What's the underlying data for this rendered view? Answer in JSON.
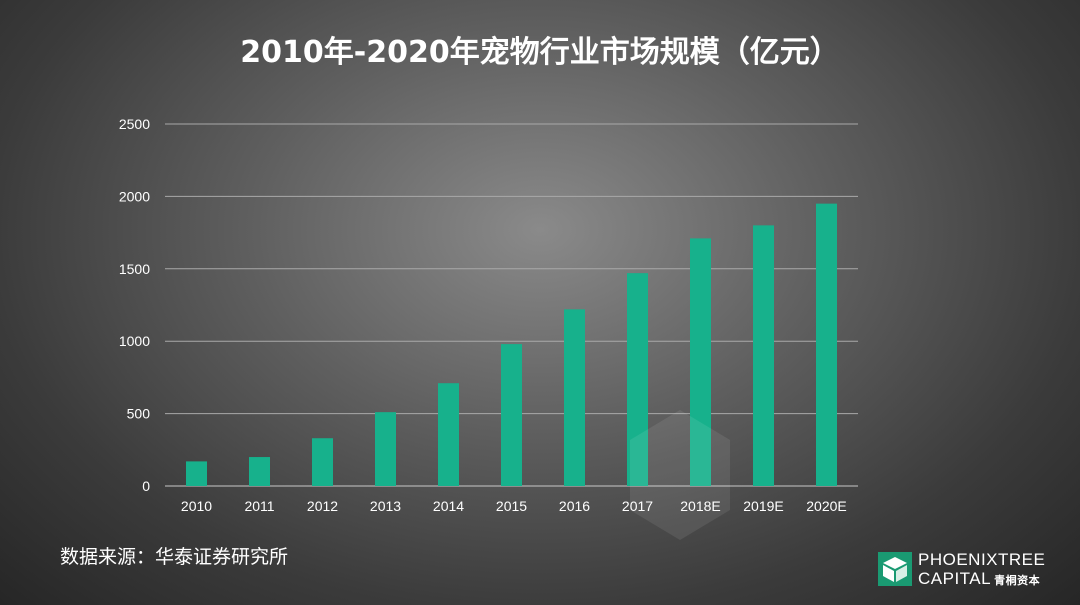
{
  "chart_data": {
    "type": "bar",
    "title": "2010年-2020年宠物行业市场规模（亿元）",
    "categories": [
      "2010",
      "2011",
      "2012",
      "2013",
      "2014",
      "2015",
      "2016",
      "2017",
      "2018E",
      "2019E",
      "2020E"
    ],
    "values": [
      170,
      200,
      330,
      510,
      710,
      980,
      1220,
      1470,
      1710,
      1800,
      1950
    ],
    "ylim": [
      0,
      2500
    ],
    "yticks": [
      "0",
      "500",
      "1000",
      "1500",
      "2000",
      "2500"
    ],
    "xlabel": "",
    "ylabel": "",
    "grid": true,
    "legend": "none",
    "bar_color": "#17b18c"
  },
  "footer": {
    "source": "数据来源：华泰证券研究所"
  },
  "logo": {
    "line1": "PHOENIXTREE",
    "line2": "CAPITAL",
    "cn": "青桐资本"
  }
}
